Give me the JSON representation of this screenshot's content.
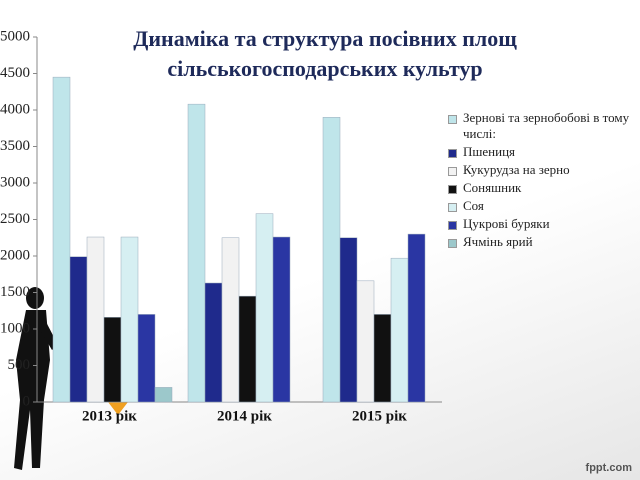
{
  "chart_data": {
    "type": "bar",
    "title": "Динаміка та структура посівних площ сільськогосподарських культур",
    "categories": [
      "2013 рік",
      "2014 рік",
      "2015 рік"
    ],
    "series": [
      {
        "name": "Зернові та зернобобові в тому числі:",
        "color": "#bfe5ea",
        "values": [
          4450,
          4080,
          3900
        ]
      },
      {
        "name": "Пшениця",
        "color": "#1f2a8c",
        "values": [
          1990,
          1630,
          2250
        ]
      },
      {
        "name": "Кукурудза на зерно",
        "color": "#f2f2f2",
        "values": [
          2260,
          2250,
          1660
        ]
      },
      {
        "name": "Соняшник",
        "color": "#111111",
        "values": [
          1160,
          1450,
          1200
        ]
      },
      {
        "name": "Соя",
        "color": "#d6eff2",
        "values": [
          2260,
          2580,
          1970
        ]
      },
      {
        "name": "Цукрові буряки",
        "color": "#2a36a3",
        "values": [
          1200,
          2260,
          2300
        ]
      },
      {
        "name": "Ячмінь ярий",
        "color": "#9cc8cb",
        "values": [
          200,
          null,
          null
        ]
      }
    ],
    "ylim": [
      0,
      5000
    ],
    "yticks": [
      0,
      500,
      1000,
      1500,
      2000,
      2500,
      3000,
      3500,
      4000,
      4500,
      5000
    ],
    "legend": "right"
  },
  "footer": "fppt.com"
}
